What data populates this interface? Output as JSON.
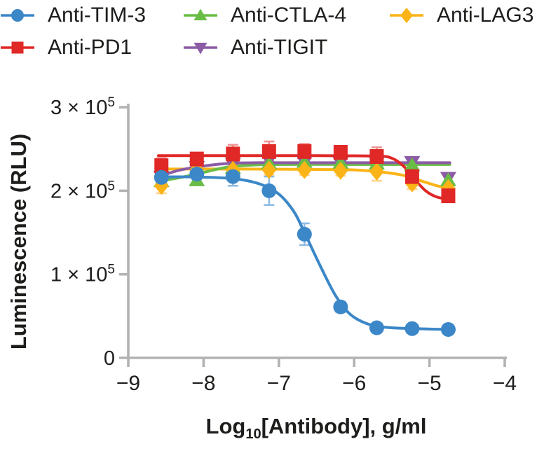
{
  "figure": {
    "background": "#ffffff",
    "text_color": "#1d1d1b",
    "axis_color": "#b2b2b2"
  },
  "legend": {
    "items": [
      {
        "label": "Anti-TIM-3",
        "marker": "circle",
        "color": "#3b87c8"
      },
      {
        "label": "Anti-PD1",
        "marker": "square",
        "color": "#e02826"
      },
      {
        "label": "Anti-CTLA-4",
        "marker": "triangle-up",
        "color": "#69bd45"
      },
      {
        "label": "Anti-TIGIT",
        "marker": "triangle-down",
        "color": "#8c5ba5"
      },
      {
        "label": "Anti-LAG3",
        "marker": "diamond",
        "color": "#fbb417"
      }
    ]
  },
  "chart_data": {
    "type": "line",
    "title": "",
    "ylabel": "Luminescence (RLU)",
    "xlabel": {
      "prefix": "Log",
      "sub": "10",
      "suffix": "[Antibody], g/ml"
    },
    "xlim": [
      -9,
      -4
    ],
    "ylim": [
      0,
      300000
    ],
    "grid": false,
    "legend_position": "top",
    "xticks": [
      -9,
      -8,
      -7,
      -6,
      -5,
      -4
    ],
    "xtick_labels": [
      "−9",
      "−8",
      "−7",
      "−6",
      "−5",
      "−4"
    ],
    "yticks": [
      {
        "value": 0,
        "coeff": "0",
        "exp": null
      },
      {
        "value": 100000,
        "coeff": "1",
        "exp": "5"
      },
      {
        "value": 200000,
        "coeff": "2",
        "exp": "5"
      },
      {
        "value": 300000,
        "coeff": "3",
        "exp": "5"
      }
    ],
    "x": [
      -8.56,
      -8.09,
      -7.61,
      -7.13,
      -6.66,
      -6.18,
      -5.7,
      -5.23,
      -4.75
    ],
    "series": [
      {
        "name": "Anti-TIM-3",
        "marker": "circle",
        "color": "#3b87c8",
        "error_color": "#8fbce3",
        "values": [
          216000,
          220000,
          217000,
          200000,
          148000,
          61000,
          36000,
          35000,
          34000
        ],
        "errors": [
          5000,
          6000,
          11000,
          17000,
          13000,
          6000,
          4000,
          3000,
          3000
        ],
        "curve": [
          [
            -8.6,
            216500
          ],
          [
            -8.1,
            216500
          ],
          [
            -7.6,
            214500
          ],
          [
            -7.25,
            208000
          ],
          [
            -7.0,
            196000
          ],
          [
            -6.8,
            175000
          ],
          [
            -6.66,
            150000
          ],
          [
            -6.45,
            110000
          ],
          [
            -6.25,
            75000
          ],
          [
            -6.05,
            52000
          ],
          [
            -5.8,
            40000
          ],
          [
            -5.5,
            36000
          ],
          [
            -5.0,
            34500
          ],
          [
            -4.73,
            34000
          ]
        ]
      },
      {
        "name": "Anti-PD1",
        "marker": "square",
        "color": "#e02826",
        "error_color": "#f09392",
        "values": [
          230000,
          238000,
          244000,
          247000,
          247000,
          246000,
          241000,
          217000,
          194000
        ],
        "errors": [
          9000,
          5000,
          11000,
          12000,
          9000,
          7000,
          11000,
          6000,
          5000
        ],
        "curve": [
          [
            -8.6,
            242000
          ],
          [
            -7.5,
            242000
          ],
          [
            -6.5,
            242000
          ],
          [
            -5.7,
            241500
          ],
          [
            -5.5,
            239000
          ],
          [
            -5.35,
            230000
          ],
          [
            -5.23,
            217000
          ],
          [
            -5.05,
            200000
          ],
          [
            -4.9,
            192500
          ],
          [
            -4.73,
            190000
          ]
        ]
      },
      {
        "name": "Anti-CTLA-4",
        "marker": "triangle-up",
        "color": "#69bd45",
        "error_color": "#a8d88c",
        "values": [
          212000,
          213000,
          228000,
          233000,
          235000,
          234000,
          233000,
          231000,
          213000
        ],
        "errors": [
          5000,
          5000,
          6000,
          6000,
          7000,
          6000,
          12000,
          5000,
          6000
        ],
        "curve": [
          [
            -8.6,
            211500
          ],
          [
            -8.3,
            216000
          ],
          [
            -8.0,
            222000
          ],
          [
            -7.7,
            228000
          ],
          [
            -7.4,
            230500
          ],
          [
            -7.0,
            231500
          ],
          [
            -6.0,
            231500
          ],
          [
            -5.0,
            231500
          ],
          [
            -4.73,
            231500
          ]
        ]
      },
      {
        "name": "Anti-TIGIT",
        "marker": "triangle-down",
        "color": "#8c5ba5",
        "error_color": "#b79bc9",
        "values": [
          216000,
          228000,
          232000,
          236000,
          234000,
          233000,
          233000,
          234000,
          215000
        ],
        "errors": [
          4000,
          4000,
          5000,
          5000,
          4000,
          4000,
          4000,
          4000,
          5000
        ],
        "curve": [
          [
            -8.6,
            216500
          ],
          [
            -8.35,
            224000
          ],
          [
            -8.05,
            229000
          ],
          [
            -7.7,
            232500
          ],
          [
            -7.3,
            233500
          ],
          [
            -6.5,
            233500
          ],
          [
            -5.5,
            233500
          ],
          [
            -4.73,
            233500
          ]
        ]
      },
      {
        "name": "Anti-LAG3",
        "marker": "diamond",
        "color": "#fbb417",
        "error_color": "#fdd489",
        "values": [
          206000,
          225000,
          225000,
          225000,
          225000,
          224000,
          223000,
          209000,
          203000
        ],
        "errors": [
          9000,
          5000,
          6000,
          6000,
          6000,
          6000,
          11000,
          7000,
          6000
        ],
        "curve": [
          [
            -8.6,
            226000
          ],
          [
            -7.5,
            226000
          ],
          [
            -6.5,
            225500
          ],
          [
            -6.0,
            225000
          ],
          [
            -5.6,
            222000
          ],
          [
            -5.35,
            218500
          ],
          [
            -5.1,
            211500
          ],
          [
            -4.9,
            206000
          ],
          [
            -4.73,
            202500
          ]
        ]
      }
    ]
  }
}
